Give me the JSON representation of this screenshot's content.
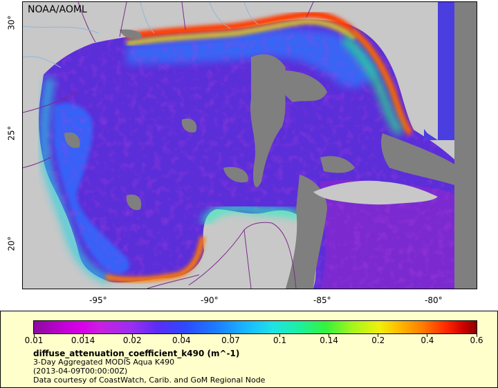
{
  "map": {
    "provider": "NOAA/AOML",
    "lon_labels": [
      "-95°",
      "-90°",
      "-85°",
      "-80°"
    ],
    "lat_labels": [
      "30°",
      "25°",
      "20°"
    ],
    "colors": {
      "land": "#c8c8c8",
      "no_data": "#7f7f7f",
      "coast_line": "#7a2a8a",
      "rivers": "#8fb6d8"
    }
  },
  "legend": {
    "tick_labels": [
      "0.01",
      "0.014",
      "0.02",
      "0.04",
      "0.07",
      "0.1",
      "0.14",
      "0.2",
      "0.4",
      "0.6"
    ],
    "variable": "diffuse_attenuation_coefficient_k490 (m^-1)",
    "line1": "3-Day Aggregated MODIS Aqua K490",
    "line2": "(2013-04-09T00:00:00Z)",
    "line3": "Data courtesy of CoastWatch, Carib. and GoM Regional Node"
  }
}
